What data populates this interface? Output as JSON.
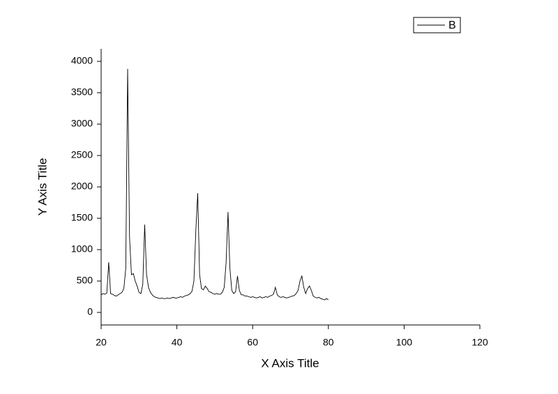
{
  "chart_data": {
    "type": "line",
    "xlabel": "X Axis Title",
    "ylabel": "Y Axis Title",
    "x": [
      20,
      20.5,
      21,
      21.5,
      22,
      22.5,
      23,
      23.5,
      24,
      24.5,
      25,
      25.5,
      26,
      26.5,
      27,
      27.5,
      28,
      28.5,
      29,
      29.5,
      30,
      30.5,
      31,
      31.5,
      32,
      32.5,
      33,
      33.5,
      34,
      34.5,
      35,
      35.5,
      36,
      36.5,
      37,
      37.5,
      38,
      38.5,
      39,
      39.5,
      40,
      40.5,
      41,
      41.5,
      42,
      42.5,
      43,
      43.5,
      44,
      44.5,
      45,
      45.5,
      46,
      46.5,
      47,
      47.5,
      48,
      48.5,
      49,
      49.5,
      50,
      50.5,
      51,
      51.5,
      52,
      52.5,
      53,
      53.5,
      54,
      54.5,
      55,
      55.5,
      56,
      56.5,
      57,
      57.5,
      58,
      58.5,
      59,
      59.5,
      60,
      60.5,
      61,
      61.5,
      62,
      62.5,
      63,
      63.5,
      64,
      64.5,
      65,
      65.5,
      66,
      66.5,
      67,
      67.5,
      68,
      68.5,
      69,
      69.5,
      70,
      70.5,
      71,
      71.5,
      72,
      72.5,
      73,
      73.5,
      74,
      74.5,
      75,
      75.5,
      76,
      76.5,
      77,
      77.5,
      78,
      78.5,
      79,
      79.5,
      80
    ],
    "series": [
      {
        "name": "B",
        "color": "#000000",
        "values": [
          280,
          300,
          290,
          310,
          800,
          300,
          290,
          270,
          260,
          280,
          300,
          320,
          380,
          700,
          3880,
          1200,
          600,
          620,
          500,
          420,
          320,
          300,
          450,
          1400,
          600,
          400,
          320,
          280,
          250,
          240,
          230,
          220,
          230,
          220,
          220,
          230,
          220,
          230,
          240,
          230,
          230,
          240,
          250,
          240,
          260,
          270,
          280,
          300,
          340,
          500,
          1300,
          1900,
          600,
          380,
          360,
          420,
          380,
          330,
          320,
          300,
          290,
          300,
          290,
          290,
          320,
          400,
          800,
          1600,
          700,
          350,
          300,
          330,
          580,
          350,
          280,
          280,
          260,
          260,
          250,
          240,
          250,
          240,
          230,
          240,
          250,
          230,
          240,
          250,
          240,
          260,
          270,
          290,
          400,
          280,
          250,
          240,
          250,
          240,
          230,
          240,
          250,
          260,
          270,
          300,
          350,
          500,
          580,
          400,
          300,
          380,
          420,
          350,
          260,
          240,
          230,
          240,
          220,
          210,
          200,
          220,
          200
        ]
      }
    ],
    "xlim": [
      20,
      120
    ],
    "xticks": [
      20,
      40,
      60,
      80,
      100,
      120
    ],
    "ylim": [
      -200,
      4200
    ],
    "yticks": [
      0,
      500,
      1000,
      1500,
      2000,
      2500,
      3000,
      3500,
      4000
    ],
    "grid": false,
    "legend": "top-right"
  }
}
